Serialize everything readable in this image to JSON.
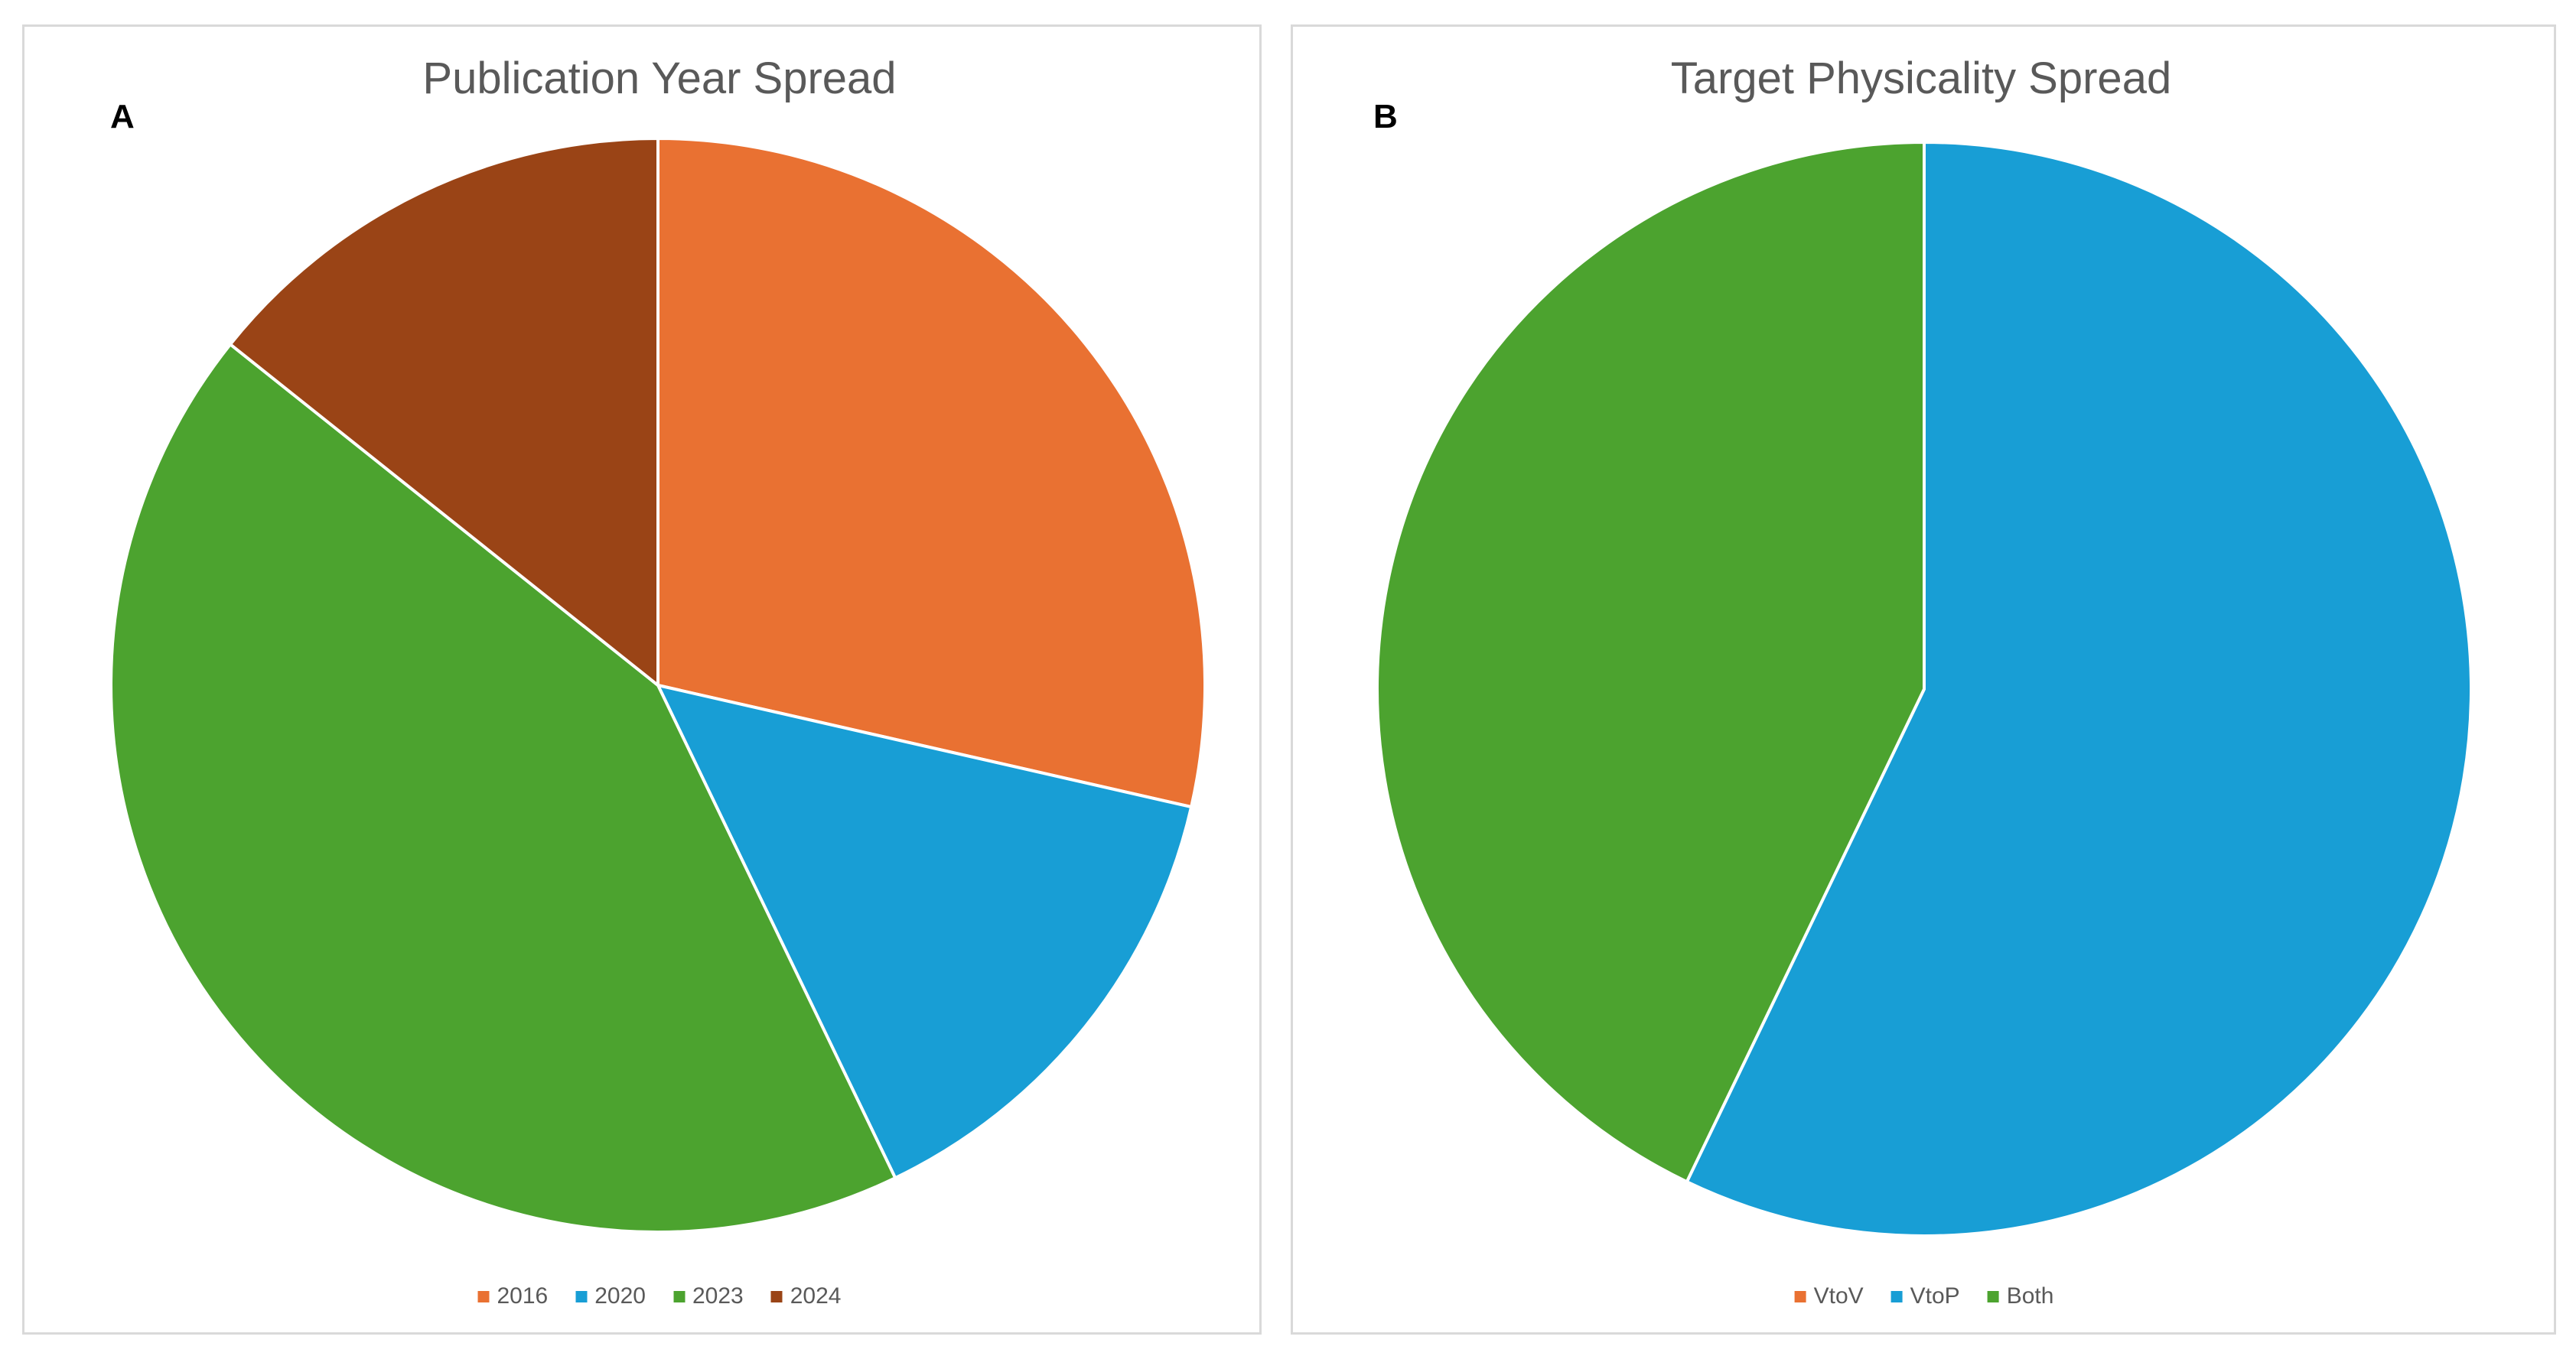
{
  "figure": {
    "background_color": "#FFFFFF",
    "panel_border_color": "#D9D9D9",
    "title_color": "#595959",
    "legend_text_color": "#595959",
    "panel_label_color": "#000000",
    "panel_labels": [
      "A",
      "B"
    ]
  },
  "chart_data": [
    {
      "type": "pie",
      "title": "Publication Year Spread",
      "categories": [
        "2016",
        "2020",
        "2023",
        "2024"
      ],
      "values": [
        2,
        1,
        3,
        1
      ],
      "percentages": [
        28.6,
        14.3,
        42.9,
        14.3
      ],
      "colors": [
        "#E97132",
        "#189ED5",
        "#4CA32F",
        "#9A4416"
      ],
      "slice_border_color": "#FFFFFF",
      "start_angle_deg": 0,
      "direction": "clockwise",
      "legend_position": "bottom",
      "data_labels": "none"
    },
    {
      "type": "pie",
      "title": "Target Physicality Spread",
      "categories": [
        "VtoV",
        "VtoP",
        "Both"
      ],
      "values": [
        0,
        4,
        3
      ],
      "percentages": [
        0,
        57.1,
        42.9
      ],
      "colors": [
        "#E97132",
        "#189ED5",
        "#4CA32F"
      ],
      "slice_border_color": "#FFFFFF",
      "start_angle_deg": 0,
      "direction": "clockwise",
      "legend_position": "bottom",
      "data_labels": "none"
    }
  ]
}
